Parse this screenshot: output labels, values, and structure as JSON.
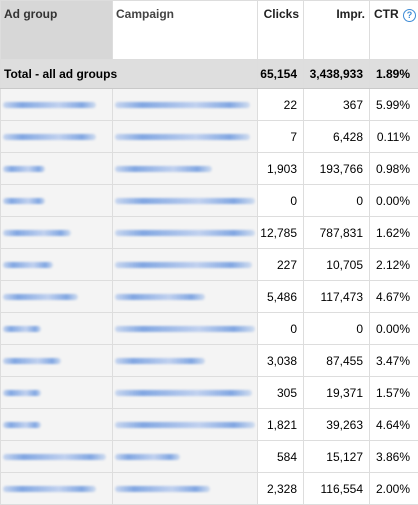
{
  "headers": {
    "ad_group": "Ad group",
    "campaign": "Campaign",
    "clicks": "Clicks",
    "impr": "Impr.",
    "ctr": "CTR",
    "help_glyph": "?"
  },
  "total": {
    "label": "Total - all ad groups",
    "clicks": "65,154",
    "impr": "3,438,933",
    "ctr": "1.89%"
  },
  "rows": [
    {
      "clicks": "22",
      "impr": "367",
      "ctr": "5.99%"
    },
    {
      "clicks": "7",
      "impr": "6,428",
      "ctr": "0.11%"
    },
    {
      "clicks": "1,903",
      "impr": "193,766",
      "ctr": "0.98%"
    },
    {
      "clicks": "0",
      "impr": "0",
      "ctr": "0.00%"
    },
    {
      "clicks": "12,785",
      "impr": "787,831",
      "ctr": "1.62%"
    },
    {
      "clicks": "227",
      "impr": "10,705",
      "ctr": "2.12%"
    },
    {
      "clicks": "5,486",
      "impr": "117,473",
      "ctr": "4.67%"
    },
    {
      "clicks": "0",
      "impr": "0",
      "ctr": "0.00%"
    },
    {
      "clicks": "3,038",
      "impr": "87,455",
      "ctr": "3.47%"
    },
    {
      "clicks": "305",
      "impr": "19,371",
      "ctr": "1.57%"
    },
    {
      "clicks": "1,821",
      "impr": "39,263",
      "ctr": "4.64%"
    },
    {
      "clicks": "584",
      "impr": "15,127",
      "ctr": "3.86%"
    },
    {
      "clicks": "2,328",
      "impr": "116,554",
      "ctr": "2.00%"
    }
  ],
  "colors": {
    "header_sorted_bg": "#d7d7d7",
    "total_bg": "#dedede",
    "help_icon": "#3d8bd6",
    "redaction": "#5a8cdc"
  }
}
